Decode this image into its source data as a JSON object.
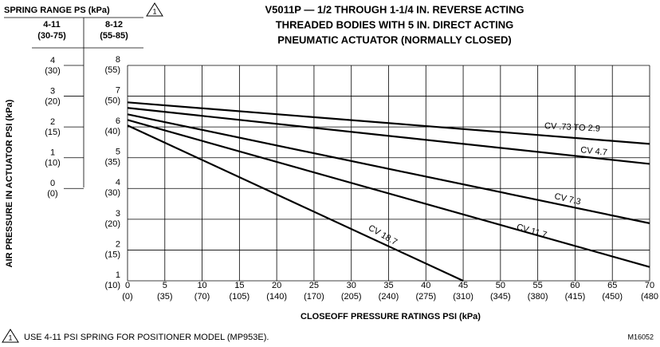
{
  "chart_data": {
    "type": "line",
    "title_lines": [
      "V5011P — 1/2 THROUGH 1-1/4 IN. REVERSE ACTING",
      "THREADED BODIES WITH  5 IN. DIRECT ACTING",
      "PNEUMATIC ACTUATOR (NORMALLY CLOSED)"
    ],
    "spring_range_title": "SPRING RANGE PS (kPa)",
    "note_marker": "1",
    "spring_columns": [
      {
        "name": "4-11",
        "kpa": "(30-75)"
      },
      {
        "name": "8-12",
        "kpa": "(55-85)"
      }
    ],
    "y_label": "AIR PRESSURE IN ACTUATOR PSI (kPa)",
    "x_label": "CLOSEOFF  PRESSURE  RATINGS  PSI  (kPa)",
    "footnote": "USE 4-11 PSI SPRING FOR POSITIONER MODEL (MP953E).",
    "figure_id": "M16052",
    "xlim": [
      0,
      70
    ],
    "xticks": [
      0,
      5,
      10,
      15,
      20,
      25,
      30,
      35,
      40,
      45,
      50,
      55,
      60,
      65,
      70
    ],
    "xticks_kpa": [
      "(0)",
      "(35)",
      "(70)",
      "(105)",
      "(140)",
      "(170)",
      "(205)",
      "(240)",
      "(275)",
      "(310)",
      "(345)",
      "(380)",
      "(415)",
      "(450)",
      "(480"
    ],
    "ylim": [
      1,
      8
    ],
    "yticks": [
      1,
      2,
      3,
      4,
      5,
      6,
      7,
      8
    ],
    "yticks_kpa": [
      "(10)",
      "(15)",
      "(20)",
      "(30)",
      "(35)",
      "(40)",
      "(50)",
      "(55)"
    ],
    "y3lim": [
      -3,
      4
    ],
    "y3ticks": [
      0,
      1,
      2,
      3,
      4
    ],
    "y3ticks_kpa": [
      "(0)",
      "(10)",
      "(15)",
      "(20)",
      "(30)"
    ],
    "grid": true,
    "series": [
      {
        "name": "CV .73 TO 2.9",
        "color": "#000000",
        "x": [
          0,
          70
        ],
        "values": [
          6.8,
          5.45
        ]
      },
      {
        "name": "CV 4.7",
        "color": "#000000",
        "x": [
          0,
          70
        ],
        "values": [
          6.62,
          4.8
        ]
      },
      {
        "name": "CV 7.3",
        "color": "#000000",
        "x": [
          0,
          70
        ],
        "values": [
          6.41,
          2.87
        ]
      },
      {
        "name": "CV 11.7",
        "color": "#000000",
        "x": [
          0,
          70
        ],
        "values": [
          6.23,
          1.45
        ]
      },
      {
        "name": "CV 18.7",
        "color": "#000000",
        "x": [
          0,
          45
        ],
        "values": [
          6.05,
          1
        ]
      }
    ]
  }
}
